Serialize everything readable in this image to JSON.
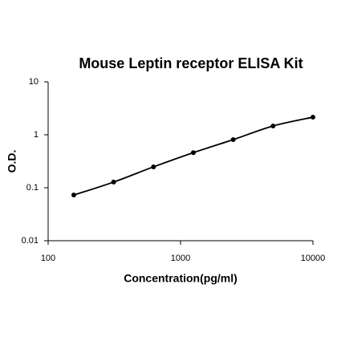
{
  "chart_data": {
    "type": "line",
    "title": "Mouse Leptin receptor ELISA Kit",
    "x_label": "Concentration(pg/ml)",
    "y_label": "O.D.",
    "x": [
      156.25,
      312.5,
      625,
      1250,
      2500,
      5000,
      10000
    ],
    "series": [
      {
        "color": "#000000",
        "values": [
          0.073,
          0.128,
          0.248,
          0.46,
          0.81,
          1.47,
          2.15
        ]
      }
    ],
    "xlim": [
      100,
      10000
    ],
    "xticks": [
      100,
      1000,
      10000
    ],
    "ylim": [
      0.01,
      10
    ],
    "yticks": [
      0.01,
      0.1,
      1,
      10
    ],
    "x_log": true,
    "y_log": true,
    "markers": true
  }
}
